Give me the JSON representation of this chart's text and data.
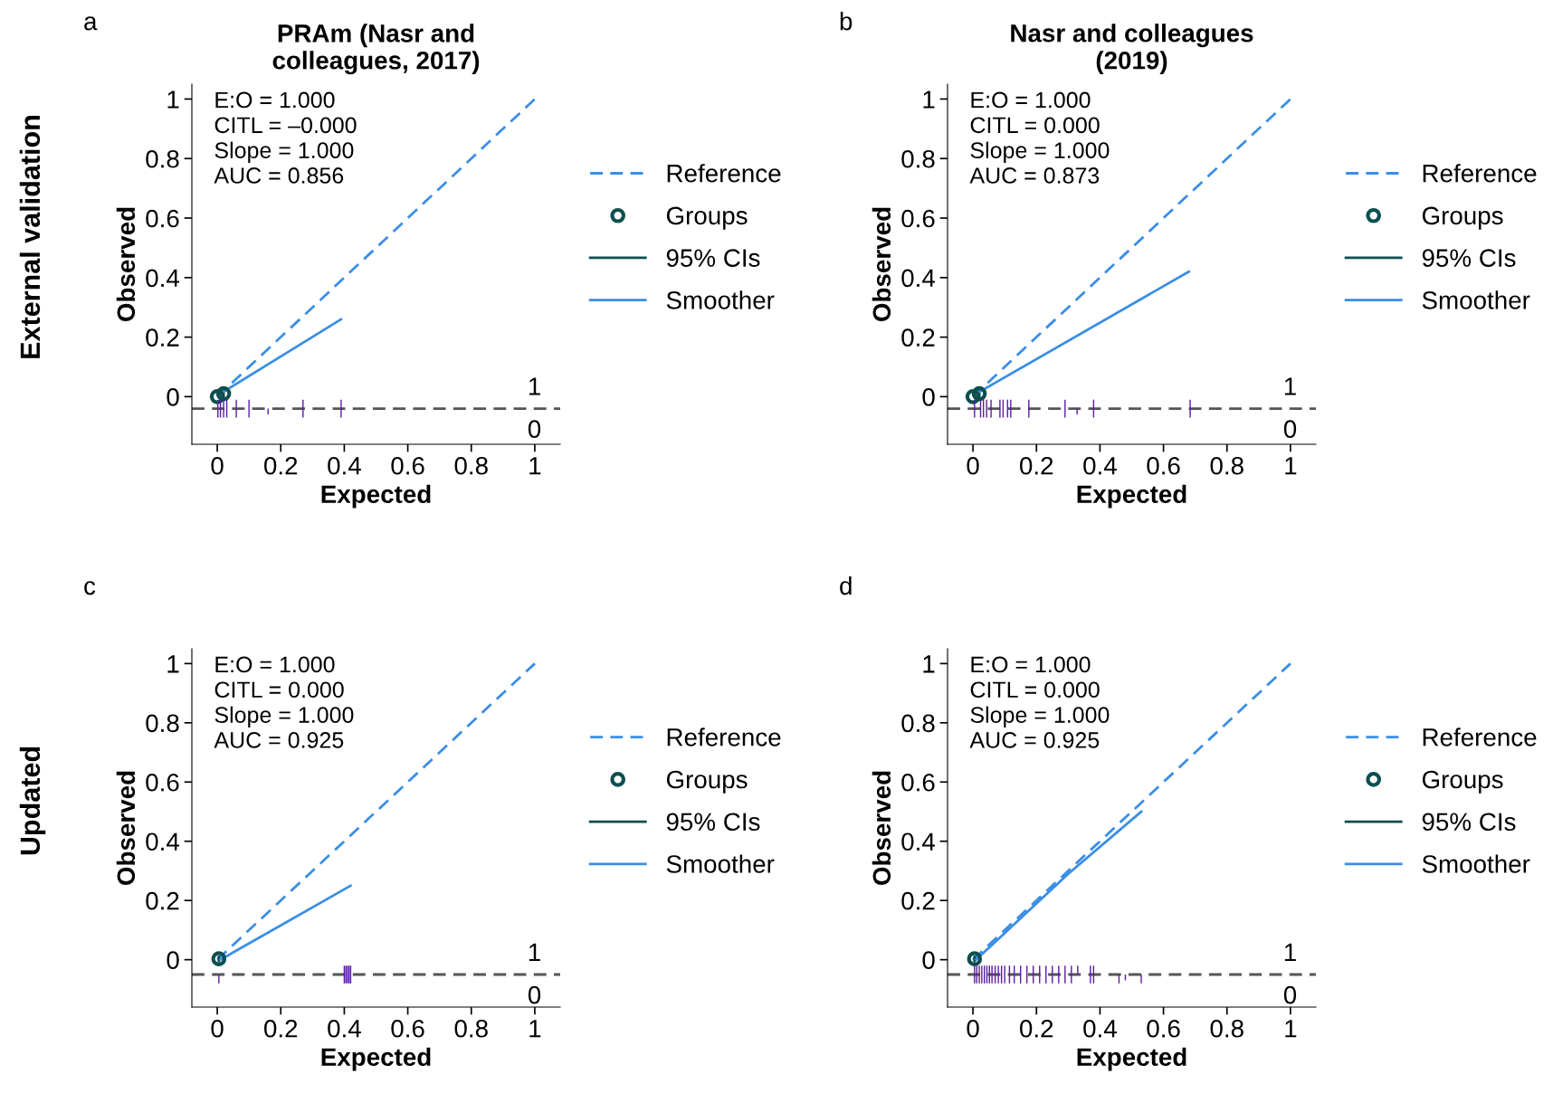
{
  "chart_data": [
    {
      "type": "line",
      "title": "PRAm (Nasr and\ncolleagues, 2017)",
      "xlabel": "Expected",
      "ylabel": "Observed",
      "xlim": [
        -0.08,
        1.08
      ],
      "ylim": [
        -0.16,
        1.05
      ],
      "xticks": [
        0,
        0.2,
        0.4,
        0.6,
        0.8,
        1
      ],
      "yticks": [
        0,
        0.2,
        0.4,
        0.6,
        0.8,
        1
      ],
      "legend": "right",
      "grid": false,
      "annotations": [
        "a",
        "E:O = 1.000\nCITL = –0.000\nSlope = 1.000\nAUC = 0.856",
        "1",
        "0",
        "External validation"
      ],
      "ref_lines": [
        {
          "axis": "y",
          "value": -0.04,
          "color": "#555555",
          "line_style": "dashed"
        }
      ],
      "series": [
        {
          "name": "Reference",
          "line_style": "dashed",
          "color": "#3a8ee6",
          "x": [
            0,
            1
          ],
          "values": [
            0,
            1
          ]
        },
        {
          "name": "Groups",
          "type": "scatter",
          "marker": "circle",
          "color": "#0d4f4f",
          "x": [
            0.0,
            0.02
          ],
          "values": [
            0.0,
            0.01
          ]
        },
        {
          "name": "95% CIs",
          "line_style": "solid",
          "color": "#0d4f4f",
          "x": [
            0.02,
            0.02
          ],
          "values": [
            0.0,
            0.02
          ]
        },
        {
          "name": "Smoother",
          "line_style": "solid",
          "color": "#3a8ee6",
          "x": [
            0.01,
            0.39
          ],
          "values": [
            0.01,
            0.26
          ]
        },
        {
          "type": "bar",
          "color": "#5b1fa0",
          "x": [
            0.002,
            0.01,
            0.02,
            0.03,
            0.06,
            0.1,
            0.16,
            0.27,
            0.39
          ],
          "values": [
            0.06,
            0.06,
            0.06,
            0.06,
            0.06,
            0.06,
            0.02,
            0.06,
            0.06
          ],
          "base": [
            -0.07,
            -0.07,
            -0.07,
            -0.07,
            -0.07,
            -0.07,
            -0.06,
            -0.07,
            -0.07
          ]
        }
      ]
    },
    {
      "type": "line",
      "title": "Nasr and colleagues\n(2019)",
      "xlabel": "Expected",
      "ylabel": "Observed",
      "xlim": [
        -0.08,
        1.08
      ],
      "ylim": [
        -0.16,
        1.05
      ],
      "xticks": [
        0,
        0.2,
        0.4,
        0.6,
        0.8,
        1
      ],
      "yticks": [
        0,
        0.2,
        0.4,
        0.6,
        0.8,
        1
      ],
      "legend": "right",
      "grid": false,
      "annotations": [
        "b",
        "E:O = 1.000\nCITL = 0.000\nSlope = 1.000\nAUC = 0.873",
        "1",
        "0"
      ],
      "ref_lines": [
        {
          "axis": "y",
          "value": -0.04,
          "color": "#555555",
          "line_style": "dashed"
        }
      ],
      "series": [
        {
          "name": "Reference",
          "line_style": "dashed",
          "color": "#3a8ee6",
          "x": [
            0,
            1
          ],
          "values": [
            0,
            1
          ]
        },
        {
          "name": "Groups",
          "type": "scatter",
          "marker": "circle",
          "color": "#0d4f4f",
          "x": [
            0.0,
            0.02
          ],
          "values": [
            0.0,
            0.01
          ]
        },
        {
          "name": "95% CIs",
          "line_style": "solid",
          "color": "#0d4f4f",
          "x": [
            0.02,
            0.02
          ],
          "values": [
            0.0,
            0.02
          ]
        },
        {
          "name": "Smoother",
          "line_style": "solid",
          "color": "#3a8ee6",
          "x": [
            0.01,
            0.68
          ],
          "values": [
            0.01,
            0.42
          ]
        },
        {
          "type": "bar",
          "color": "#5b1fa0",
          "x": [
            0.005,
            0.024,
            0.033,
            0.043,
            0.057,
            0.085,
            0.095,
            0.109,
            0.119,
            0.176,
            0.29,
            0.328,
            0.38,
            0.684
          ],
          "values": [
            0.06,
            0.06,
            0.06,
            0.06,
            0.06,
            0.06,
            0.06,
            0.06,
            0.06,
            0.06,
            0.06,
            0.02,
            0.06,
            0.06
          ],
          "base": [
            -0.07,
            -0.07,
            -0.07,
            -0.07,
            -0.07,
            -0.07,
            -0.07,
            -0.07,
            -0.07,
            -0.07,
            -0.07,
            -0.06,
            -0.07,
            -0.07
          ]
        }
      ]
    },
    {
      "type": "line",
      "xlabel": "Expected",
      "ylabel": "Observed",
      "xlim": [
        -0.08,
        1.08
      ],
      "ylim": [
        -0.16,
        1.05
      ],
      "xticks": [
        0,
        0.2,
        0.4,
        0.6,
        0.8,
        1
      ],
      "yticks": [
        0,
        0.2,
        0.4,
        0.6,
        0.8,
        1
      ],
      "legend": "right",
      "grid": false,
      "annotations": [
        "c",
        "E:O = 1.000\nCITL = 0.000\nSlope = 1.000\nAUC = 0.925",
        "1",
        "0",
        "Updated"
      ],
      "ref_lines": [
        {
          "axis": "y",
          "value": -0.05,
          "color": "#555555",
          "line_style": "dashed"
        }
      ],
      "series": [
        {
          "name": "Reference",
          "line_style": "dashed",
          "color": "#3a8ee6",
          "x": [
            0,
            1
          ],
          "values": [
            0,
            1
          ]
        },
        {
          "name": "Groups",
          "type": "scatter",
          "marker": "circle",
          "color": "#0d4f4f",
          "x": [
            0.005
          ],
          "values": [
            0.003
          ]
        },
        {
          "name": "95% CIs",
          "line_style": "solid",
          "color": "#0d4f4f",
          "x": [
            0.005,
            0.005
          ],
          "values": [
            -0.005,
            0.01
          ]
        },
        {
          "name": "Smoother",
          "line_style": "solid",
          "color": "#3a8ee6",
          "x": [
            0.01,
            0.42
          ],
          "values": [
            0.0,
            0.25
          ]
        },
        {
          "type": "bar",
          "color": "#5b1fa0",
          "x": [
            0.005,
            0.4,
            0.405,
            0.41,
            0.415,
            0.42
          ],
          "values": [
            0.03,
            0.06,
            0.06,
            0.06,
            0.06,
            0.06
          ],
          "base": [
            -0.08,
            -0.08,
            -0.08,
            -0.08,
            -0.08,
            -0.08
          ]
        }
      ]
    },
    {
      "type": "line",
      "xlabel": "Expected",
      "ylabel": "Observed",
      "xlim": [
        -0.08,
        1.08
      ],
      "ylim": [
        -0.16,
        1.05
      ],
      "xticks": [
        0,
        0.2,
        0.4,
        0.6,
        0.8,
        1
      ],
      "yticks": [
        0,
        0.2,
        0.4,
        0.6,
        0.8,
        1
      ],
      "legend": "right",
      "grid": false,
      "annotations": [
        "d",
        "E:O = 1.000\nCITL = 0.000\nSlope = 1.000\nAUC = 0.925",
        "1",
        "0"
      ],
      "ref_lines": [
        {
          "axis": "y",
          "value": -0.05,
          "color": "#555555",
          "line_style": "dashed"
        }
      ],
      "series": [
        {
          "name": "Reference",
          "line_style": "dashed",
          "color": "#3a8ee6",
          "x": [
            0,
            1
          ],
          "values": [
            0,
            1
          ]
        },
        {
          "name": "Groups",
          "type": "scatter",
          "marker": "circle",
          "color": "#0d4f4f",
          "x": [
            0.005
          ],
          "values": [
            0.003
          ]
        },
        {
          "name": "95% CIs",
          "line_style": "solid",
          "color": "#0d4f4f",
          "x": [
            0.005,
            0.005
          ],
          "values": [
            -0.005,
            0.01
          ]
        },
        {
          "name": "Smoother",
          "line_style": "solid",
          "color": "#3a8ee6",
          "x": [
            0.01,
            0.1,
            0.2,
            0.3,
            0.53
          ],
          "values": [
            0.0,
            0.09,
            0.19,
            0.29,
            0.5
          ]
        },
        {
          "type": "bar",
          "color": "#5b1fa0",
          "x": [
            0.005,
            0.012,
            0.02,
            0.028,
            0.036,
            0.044,
            0.052,
            0.06,
            0.07,
            0.08,
            0.09,
            0.1,
            0.115,
            0.13,
            0.15,
            0.17,
            0.19,
            0.21,
            0.23,
            0.25,
            0.27,
            0.29,
            0.31,
            0.33,
            0.37,
            0.38,
            0.46,
            0.48,
            0.53
          ],
          "values": [
            0.06,
            0.06,
            0.06,
            0.06,
            0.06,
            0.06,
            0.06,
            0.06,
            0.06,
            0.06,
            0.06,
            0.06,
            0.06,
            0.06,
            0.06,
            0.06,
            0.06,
            0.06,
            0.06,
            0.06,
            0.06,
            0.06,
            0.06,
            0.03,
            0.06,
            0.06,
            0.03,
            0.02,
            0.03
          ],
          "base": [
            -0.08,
            -0.08,
            -0.08,
            -0.08,
            -0.08,
            -0.08,
            -0.08,
            -0.08,
            -0.08,
            -0.08,
            -0.08,
            -0.08,
            -0.08,
            -0.08,
            -0.08,
            -0.08,
            -0.08,
            -0.08,
            -0.08,
            -0.08,
            -0.08,
            -0.08,
            -0.08,
            -0.05,
            -0.08,
            -0.08,
            -0.08,
            -0.07,
            -0.08
          ]
        }
      ]
    }
  ]
}
